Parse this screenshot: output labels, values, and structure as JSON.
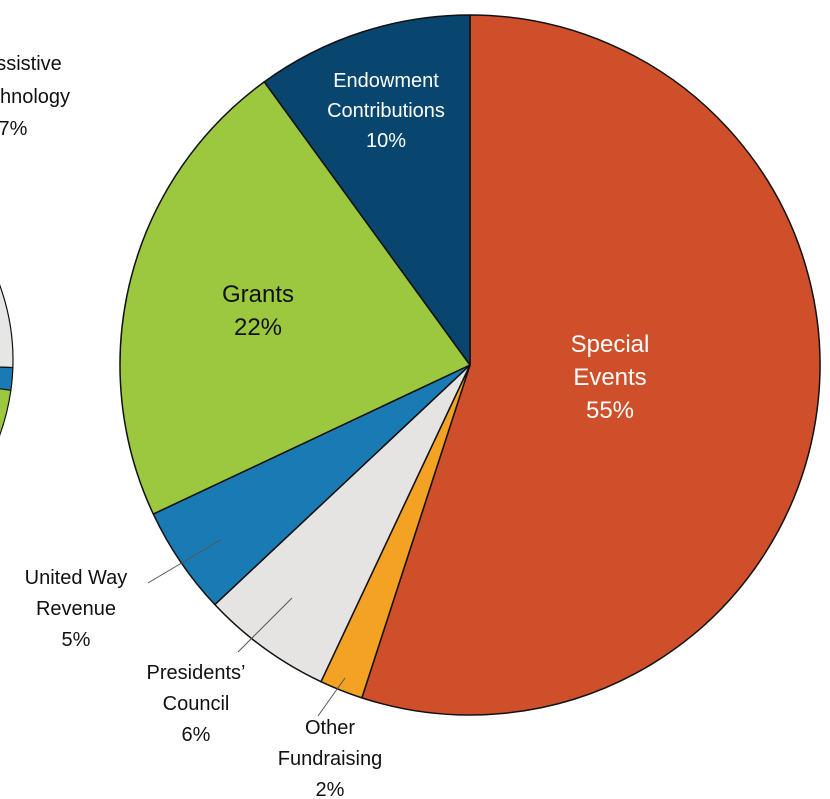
{
  "chart_data": [
    {
      "type": "pie",
      "note_visible": "partially cropped pie at left edge",
      "slices": [
        {
          "label_lines": [
            "ssistive",
            "chnology",
            "7%"
          ],
          "color": "#e6e6e4"
        },
        {
          "label_lines": [],
          "color": "#1a7bb4"
        },
        {
          "label_lines": [],
          "color": "#9bc83e"
        }
      ]
    },
    {
      "type": "pie",
      "slices": [
        {
          "name": "Special Events",
          "value": 55,
          "label_lines": [
            "Special",
            "Events",
            "55%"
          ],
          "color": "#cf4f2a",
          "label_color": "#ffffff"
        },
        {
          "name": "Other Fundraising",
          "value": 2,
          "label_lines": [
            "Other",
            "Fundraising",
            "2%"
          ],
          "color": "#f4a224",
          "label_color": "#111111"
        },
        {
          "name": "Presidents’ Council",
          "value": 6,
          "label_lines": [
            "Presidents’",
            "Council",
            "6%"
          ],
          "color": "#e5e4e2",
          "label_color": "#111111"
        },
        {
          "name": "United Way Revenue",
          "value": 5,
          "label_lines": [
            "United Way",
            "Revenue",
            "5%"
          ],
          "color": "#1a7bb4",
          "label_color": "#111111"
        },
        {
          "name": "Grants",
          "value": 22,
          "label_lines": [
            "Grants",
            "22%"
          ],
          "color": "#9bc83e",
          "label_color": "#111111"
        },
        {
          "name": "Endowment Contributions",
          "value": 10,
          "label_lines": [
            "Endowment",
            "Contributions",
            "10%"
          ],
          "color": "#084670",
          "label_color": "#ffffff"
        }
      ]
    }
  ]
}
